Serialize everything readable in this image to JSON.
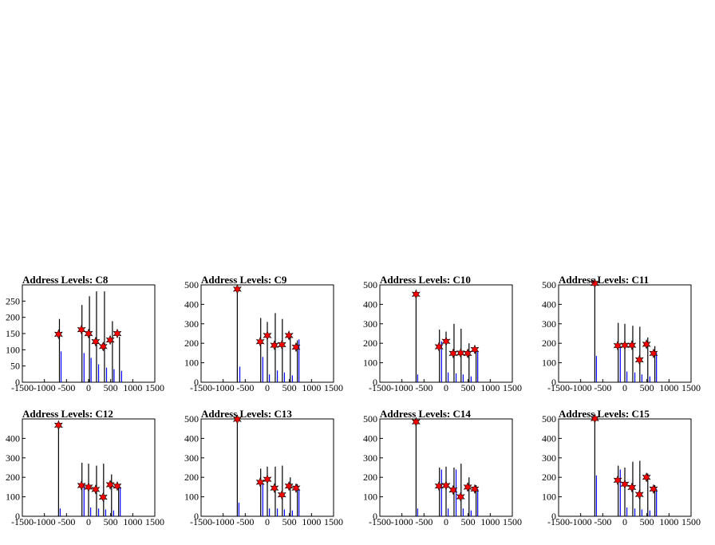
{
  "chart_data": [
    {
      "title": "Address Levels: C8",
      "type": "bar",
      "xlim": [
        -1500,
        1500
      ],
      "ylim": [
        0,
        300
      ],
      "yticks": [
        0,
        50,
        100,
        150,
        200,
        250
      ],
      "xtick_labels": [
        "-1500",
        "-1000",
        "-500",
        "0",
        "500",
        "1000",
        "1500"
      ],
      "black_peaks": [
        [
          -660,
          195
        ],
        [
          -150,
          238
        ],
        [
          20,
          265
        ],
        [
          180,
          280
        ],
        [
          360,
          280
        ],
        [
          540,
          188
        ],
        [
          700,
          140
        ]
      ],
      "blue_peaks": [
        [
          -650,
          95
        ],
        [
          -130,
          90
        ],
        [
          30,
          75
        ],
        [
          200,
          55
        ],
        [
          380,
          45
        ],
        [
          550,
          40
        ],
        [
          720,
          35
        ]
      ],
      "markers": [
        [
          -680,
          148
        ],
        [
          -160,
          162
        ],
        [
          0,
          150
        ],
        [
          160,
          125
        ],
        [
          330,
          110
        ],
        [
          490,
          130
        ],
        [
          650,
          150
        ]
      ]
    },
    {
      "title": "Address Levels: C9",
      "type": "bar",
      "xlim": [
        -1500,
        1500
      ],
      "ylim": [
        0,
        500
      ],
      "yticks": [
        0,
        100,
        200,
        300,
        400,
        500
      ],
      "xtick_labels": [
        "-1500",
        "-1000",
        "-500",
        "0",
        "500",
        "1000",
        "1500"
      ],
      "black_peaks": [
        [
          -680,
          480
        ],
        [
          -150,
          330
        ],
        [
          0,
          310
        ],
        [
          180,
          355
        ],
        [
          340,
          325
        ],
        [
          520,
          230
        ],
        [
          680,
          215
        ]
      ],
      "blue_peaks": [
        [
          -650,
          80
        ],
        [
          -130,
          130
        ],
        [
          20,
          40
        ],
        [
          200,
          60
        ],
        [
          360,
          50
        ],
        [
          540,
          35
        ],
        [
          690,
          220
        ]
      ],
      "markers": [
        [
          -680,
          478
        ],
        [
          -160,
          208
        ],
        [
          0,
          240
        ],
        [
          160,
          190
        ],
        [
          330,
          193
        ],
        [
          490,
          240
        ],
        [
          650,
          180
        ]
      ]
    },
    {
      "title": "Address Levels: C10",
      "type": "bar",
      "xlim": [
        -1500,
        1500
      ],
      "ylim": [
        0,
        500
      ],
      "yticks": [
        0,
        100,
        200,
        300,
        400,
        500
      ],
      "xtick_labels": [
        "-1500",
        "-1000",
        "-500",
        "0",
        "500",
        "1000",
        "1500"
      ],
      "black_peaks": [
        [
          -680,
          470
        ],
        [
          -150,
          270
        ],
        [
          0,
          260
        ],
        [
          180,
          300
        ],
        [
          340,
          275
        ],
        [
          520,
          200
        ],
        [
          680,
          175
        ]
      ],
      "blue_peaks": [
        [
          -670,
          40
        ],
        [
          -130,
          210
        ],
        [
          20,
          50
        ],
        [
          200,
          45
        ],
        [
          360,
          40
        ],
        [
          540,
          30
        ],
        [
          690,
          160
        ]
      ],
      "markers": [
        [
          -680,
          452
        ],
        [
          -160,
          182
        ],
        [
          0,
          210
        ],
        [
          160,
          148
        ],
        [
          330,
          150
        ],
        [
          490,
          148
        ],
        [
          650,
          168
        ]
      ]
    },
    {
      "title": "Address Levels: C11",
      "type": "bar",
      "xlim": [
        -1500,
        1500
      ],
      "ylim": [
        0,
        500
      ],
      "yticks": [
        0,
        100,
        200,
        300,
        400,
        500
      ],
      "xtick_labels": [
        "-1500",
        "-1000",
        "-500",
        "0",
        "500",
        "1000",
        "1500"
      ],
      "black_peaks": [
        [
          -680,
          510
        ],
        [
          -150,
          305
        ],
        [
          0,
          300
        ],
        [
          180,
          290
        ],
        [
          340,
          285
        ],
        [
          520,
          230
        ],
        [
          680,
          185
        ]
      ],
      "blue_peaks": [
        [
          -670,
          135
        ],
        [
          -130,
          180
        ],
        [
          20,
          55
        ],
        [
          200,
          50
        ],
        [
          360,
          40
        ],
        [
          540,
          30
        ],
        [
          690,
          150
        ]
      ],
      "markers": [
        [
          -680,
          508
        ],
        [
          -160,
          188
        ],
        [
          0,
          190
        ],
        [
          160,
          190
        ],
        [
          330,
          115
        ],
        [
          490,
          195
        ],
        [
          650,
          148
        ]
      ]
    },
    {
      "title": "Address Levels: C12",
      "type": "bar",
      "xlim": [
        -1500,
        1500
      ],
      "ylim": [
        0,
        500
      ],
      "yticks": [
        0,
        100,
        200,
        300,
        400
      ],
      "xtick_labels": [
        "-1500",
        "-1000",
        "-500",
        "0",
        "500",
        "1000",
        "1500"
      ],
      "black_peaks": [
        [
          -680,
          470
        ],
        [
          -150,
          275
        ],
        [
          0,
          270
        ],
        [
          180,
          260
        ],
        [
          340,
          270
        ],
        [
          520,
          215
        ],
        [
          680,
          165
        ]
      ],
      "blue_peaks": [
        [
          -670,
          40
        ],
        [
          -130,
          160
        ],
        [
          20,
          45
        ],
        [
          200,
          40
        ],
        [
          360,
          35
        ],
        [
          540,
          30
        ],
        [
          690,
          150
        ]
      ],
      "markers": [
        [
          -680,
          468
        ],
        [
          -160,
          158
        ],
        [
          0,
          150
        ],
        [
          160,
          138
        ],
        [
          330,
          98
        ],
        [
          490,
          162
        ],
        [
          650,
          155
        ]
      ]
    },
    {
      "title": "Address Levels: C13",
      "type": "bar",
      "xlim": [
        -1500,
        1500
      ],
      "ylim": [
        0,
        500
      ],
      "yticks": [
        0,
        100,
        200,
        300,
        400,
        500
      ],
      "xtick_labels": [
        "-1500",
        "-1000",
        "-500",
        "0",
        "500",
        "1000",
        "1500"
      ],
      "black_peaks": [
        [
          -680,
          500
        ],
        [
          -150,
          245
        ],
        [
          0,
          255
        ],
        [
          180,
          255
        ],
        [
          340,
          260
        ],
        [
          520,
          200
        ],
        [
          680,
          165
        ]
      ],
      "blue_peaks": [
        [
          -670,
          70
        ],
        [
          -130,
          170
        ],
        [
          20,
          40
        ],
        [
          200,
          40
        ],
        [
          360,
          35
        ],
        [
          540,
          30
        ],
        [
          690,
          140
        ]
      ],
      "markers": [
        [
          -680,
          498
        ],
        [
          -160,
          175
        ],
        [
          0,
          190
        ],
        [
          160,
          145
        ],
        [
          330,
          110
        ],
        [
          490,
          155
        ],
        [
          650,
          145
        ]
      ]
    },
    {
      "title": "Address Levels: C14",
      "type": "bar",
      "xlim": [
        -1500,
        1500
      ],
      "ylim": [
        0,
        500
      ],
      "yticks": [
        0,
        100,
        200,
        300,
        400,
        500
      ],
      "xtick_labels": [
        "-1500",
        "-1000",
        "-500",
        "0",
        "500",
        "1000",
        "1500"
      ],
      "black_peaks": [
        [
          -680,
          490
        ],
        [
          -150,
          250
        ],
        [
          0,
          255
        ],
        [
          180,
          250
        ],
        [
          340,
          270
        ],
        [
          520,
          200
        ],
        [
          680,
          160
        ]
      ],
      "blue_peaks": [
        [
          -670,
          40
        ],
        [
          -130,
          240
        ],
        [
          20,
          40
        ],
        [
          200,
          240
        ],
        [
          360,
          40
        ],
        [
          540,
          30
        ],
        [
          690,
          140
        ]
      ],
      "markers": [
        [
          -680,
          485
        ],
        [
          -160,
          155
        ],
        [
          0,
          158
        ],
        [
          160,
          135
        ],
        [
          330,
          100
        ],
        [
          490,
          150
        ],
        [
          650,
          140
        ]
      ]
    },
    {
      "title": "Address Levels: C15",
      "type": "bar",
      "xlim": [
        -1500,
        1500
      ],
      "ylim": [
        0,
        500
      ],
      "yticks": [
        0,
        100,
        200,
        300,
        400,
        500
      ],
      "xtick_labels": [
        "-1500",
        "-1000",
        "-500",
        "0",
        "500",
        "1000",
        "1500"
      ],
      "black_peaks": [
        [
          -680,
          505
        ],
        [
          -150,
          260
        ],
        [
          0,
          250
        ],
        [
          180,
          280
        ],
        [
          340,
          285
        ],
        [
          520,
          220
        ],
        [
          680,
          160
        ]
      ],
      "blue_peaks": [
        [
          -670,
          210
        ],
        [
          -130,
          240
        ],
        [
          20,
          45
        ],
        [
          200,
          40
        ],
        [
          360,
          35
        ],
        [
          540,
          30
        ],
        [
          690,
          140
        ]
      ],
      "markers": [
        [
          -680,
          502
        ],
        [
          -160,
          185
        ],
        [
          0,
          165
        ],
        [
          160,
          148
        ],
        [
          330,
          112
        ],
        [
          490,
          200
        ],
        [
          650,
          140
        ]
      ]
    }
  ]
}
